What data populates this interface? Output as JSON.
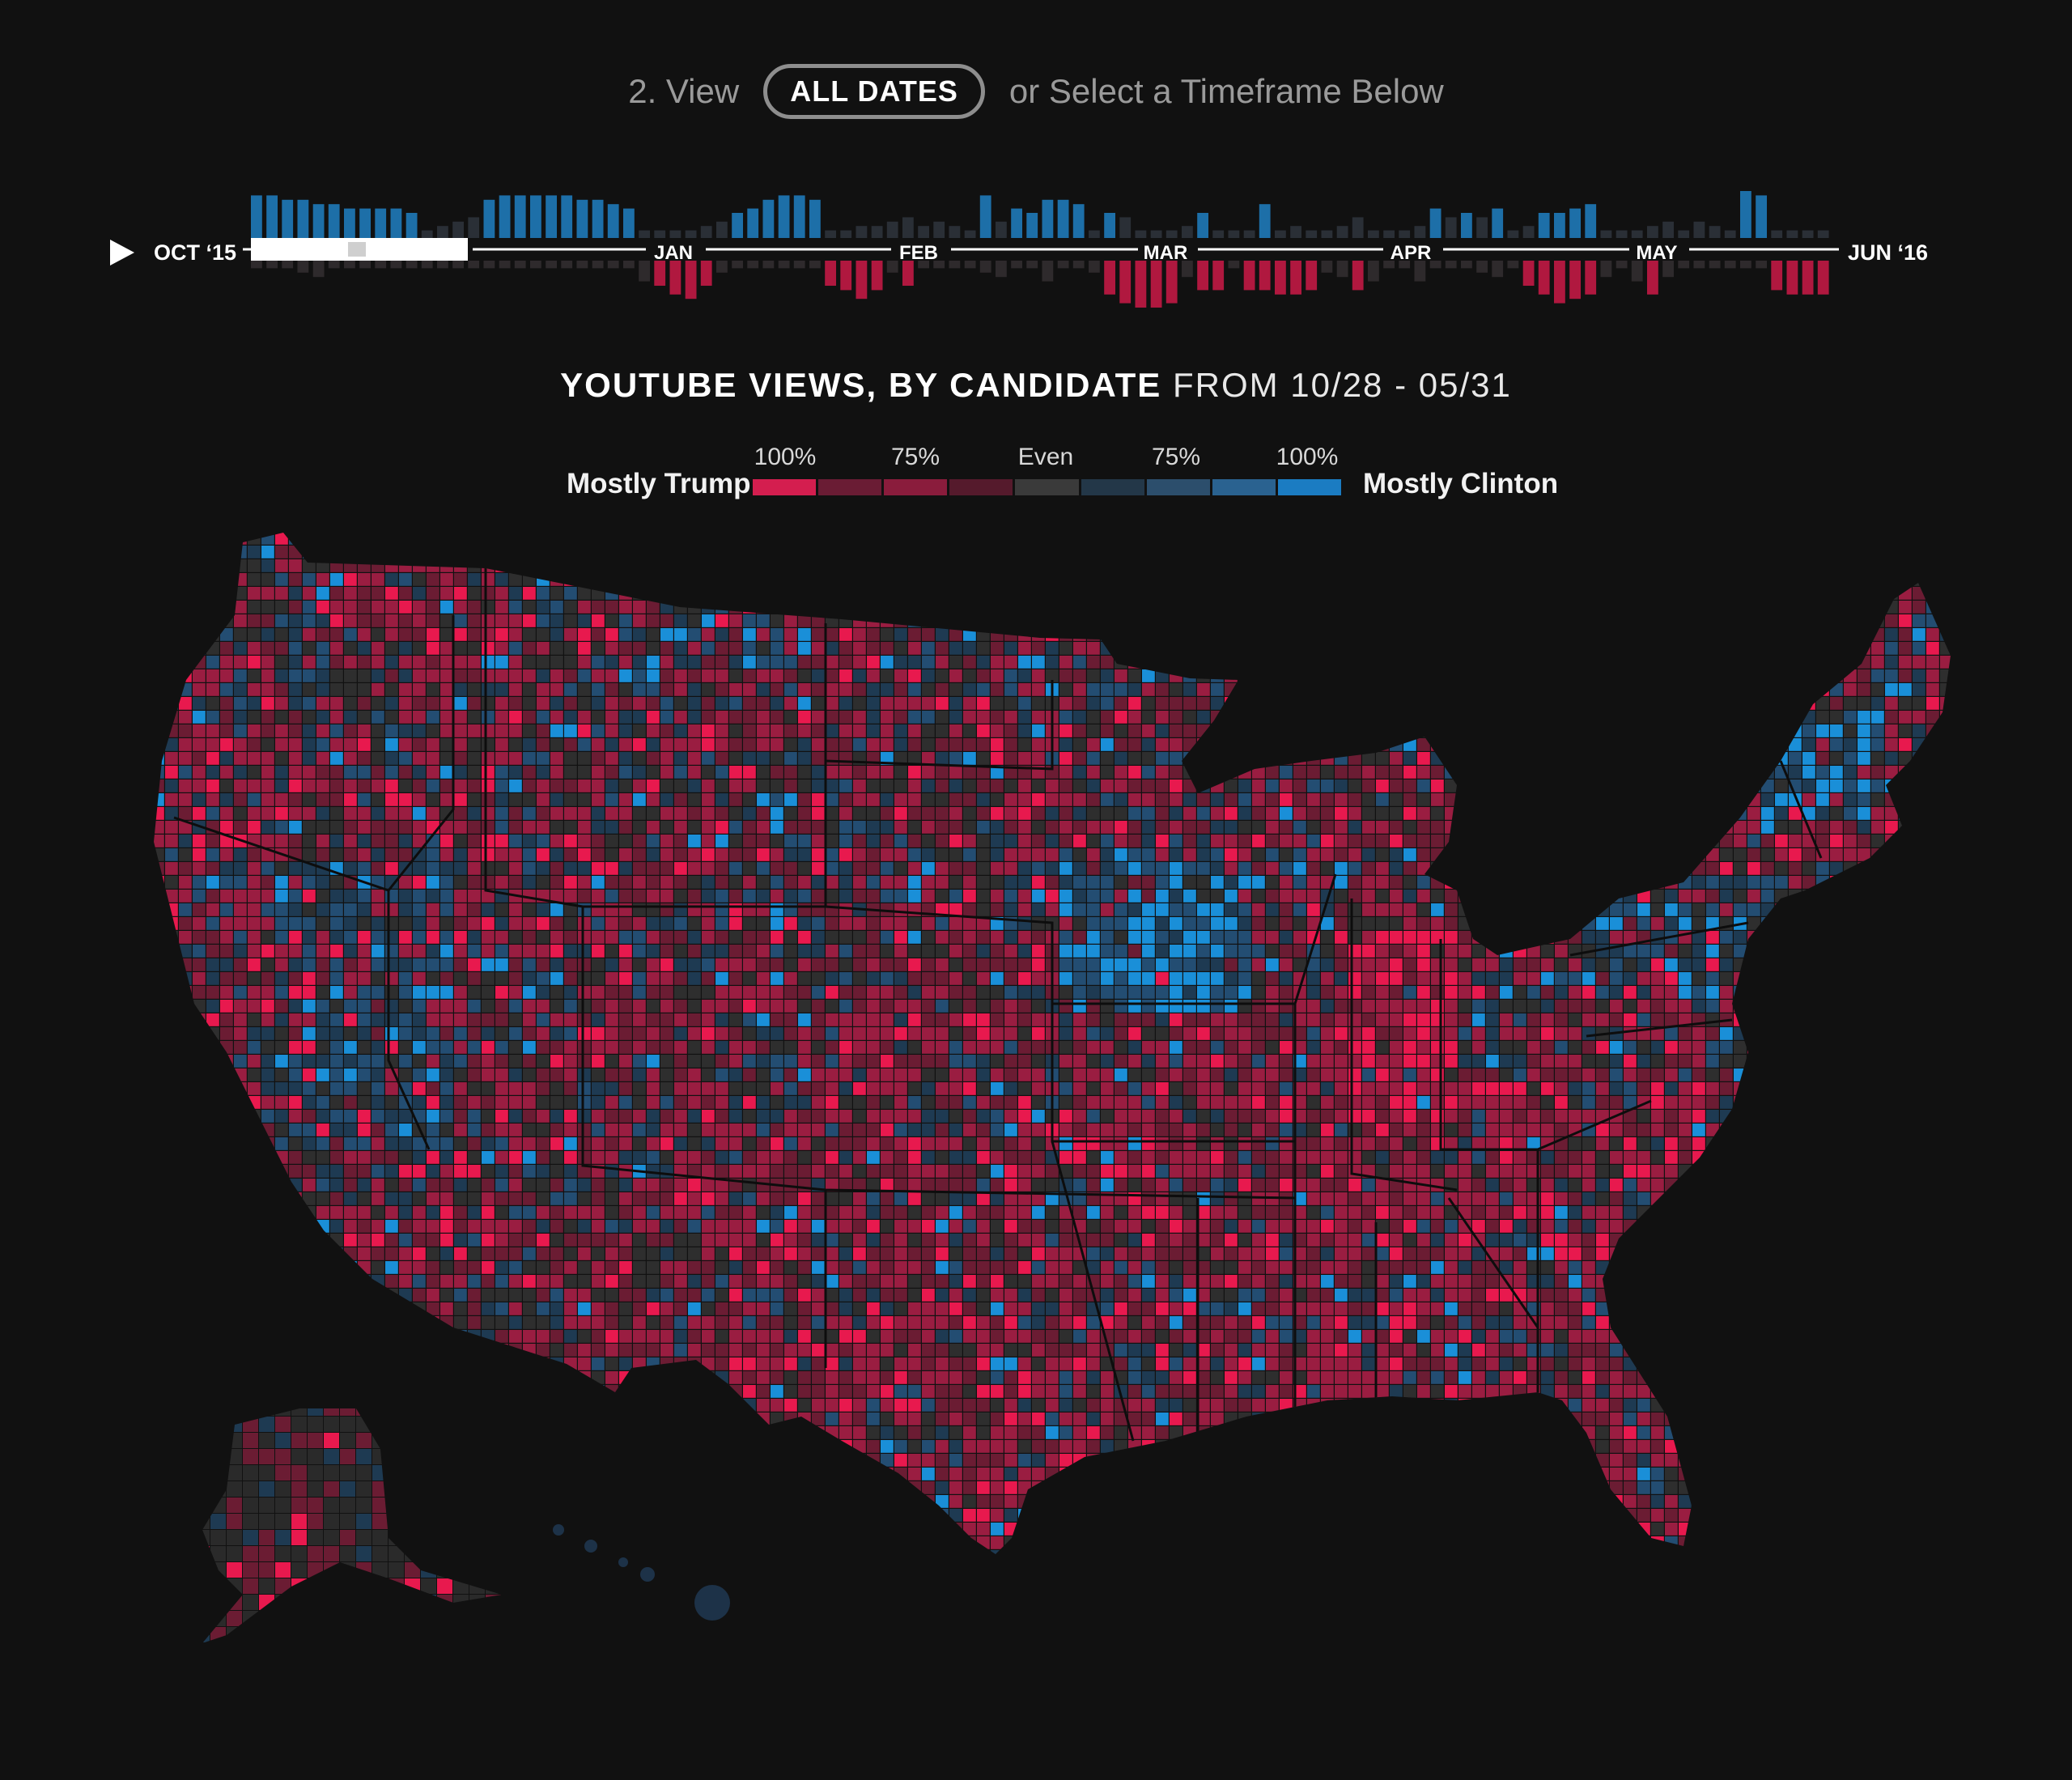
{
  "view": {
    "prefix": "2. View",
    "button_label": "ALL DATES",
    "suffix": "or Select a Timeframe Below"
  },
  "timeline": {
    "play_icon": "play-icon",
    "start_label": "OCT ‘15",
    "month_labels": [
      "JAN",
      "FEB",
      "MAR",
      "APR",
      "MAY"
    ],
    "end_label": "JUN ‘16",
    "clinton_bars": [
      9,
      9,
      8,
      8,
      7,
      7,
      6,
      6,
      6,
      6,
      5,
      1,
      2,
      3,
      4,
      8,
      9,
      9,
      9,
      9,
      9,
      8,
      8,
      7,
      6,
      1,
      1,
      1,
      1,
      2,
      3,
      5,
      6,
      8,
      9,
      9,
      8,
      1,
      1,
      2,
      2,
      3,
      4,
      2,
      3,
      2,
      1,
      9,
      3,
      6,
      5,
      8,
      8,
      7,
      1,
      5,
      4,
      1,
      1,
      1,
      2,
      5,
      1,
      1,
      1,
      7,
      1,
      2,
      1,
      1,
      2,
      4,
      1,
      1,
      1,
      2,
      6,
      4,
      5,
      4,
      6,
      1,
      2,
      5,
      5,
      6,
      7,
      1,
      1,
      1,
      2,
      3,
      1,
      3,
      2,
      1,
      10,
      9,
      1,
      1,
      1,
      1
    ],
    "trump_bars": [
      1,
      1,
      1,
      2,
      3,
      1,
      1,
      1,
      1,
      1,
      1,
      1,
      1,
      1,
      1,
      1,
      1,
      1,
      1,
      1,
      1,
      1,
      1,
      1,
      1,
      4,
      5,
      7,
      8,
      5,
      2,
      1,
      1,
      1,
      1,
      1,
      1,
      5,
      6,
      8,
      6,
      2,
      5,
      1,
      1,
      1,
      1,
      2,
      3,
      1,
      1,
      4,
      1,
      1,
      2,
      7,
      9,
      10,
      10,
      9,
      3,
      6,
      6,
      1,
      6,
      6,
      7,
      7,
      6,
      2,
      3,
      6,
      4,
      1,
      1,
      4,
      1,
      1,
      1,
      2,
      3,
      1,
      5,
      7,
      9,
      8,
      7,
      3,
      1,
      4,
      7,
      3,
      1,
      1,
      1,
      1,
      1,
      1,
      6,
      7,
      7,
      7
    ]
  },
  "title": {
    "strong": "YOUTUBE VIEWS, BY CANDIDATE",
    "rest": "FROM 10/28 - 05/31"
  },
  "legend": {
    "left_label": "Mostly Trump",
    "right_label": "Mostly Clinton",
    "ticks": [
      "100%",
      "75%",
      "Even",
      "75%",
      "100%"
    ],
    "swatch_colors": [
      "#d41e4f",
      "#6a1c34",
      "#8a1c3c",
      "#551a2c",
      "#3a3a3a",
      "#233748",
      "#2c4e6c",
      "#2a6290",
      "#1b7cc2"
    ]
  },
  "map": {
    "region": "United States counties",
    "colors": {
      "trump_strong": "#e8194e",
      "trump_mid": "#9a1d41",
      "trump_light": "#6b1c33",
      "even": "#2e2e2e",
      "clinton_light": "#1e3a52",
      "clinton_mid": "#234d72",
      "clinton_strong": "#1a8fd8"
    }
  }
}
